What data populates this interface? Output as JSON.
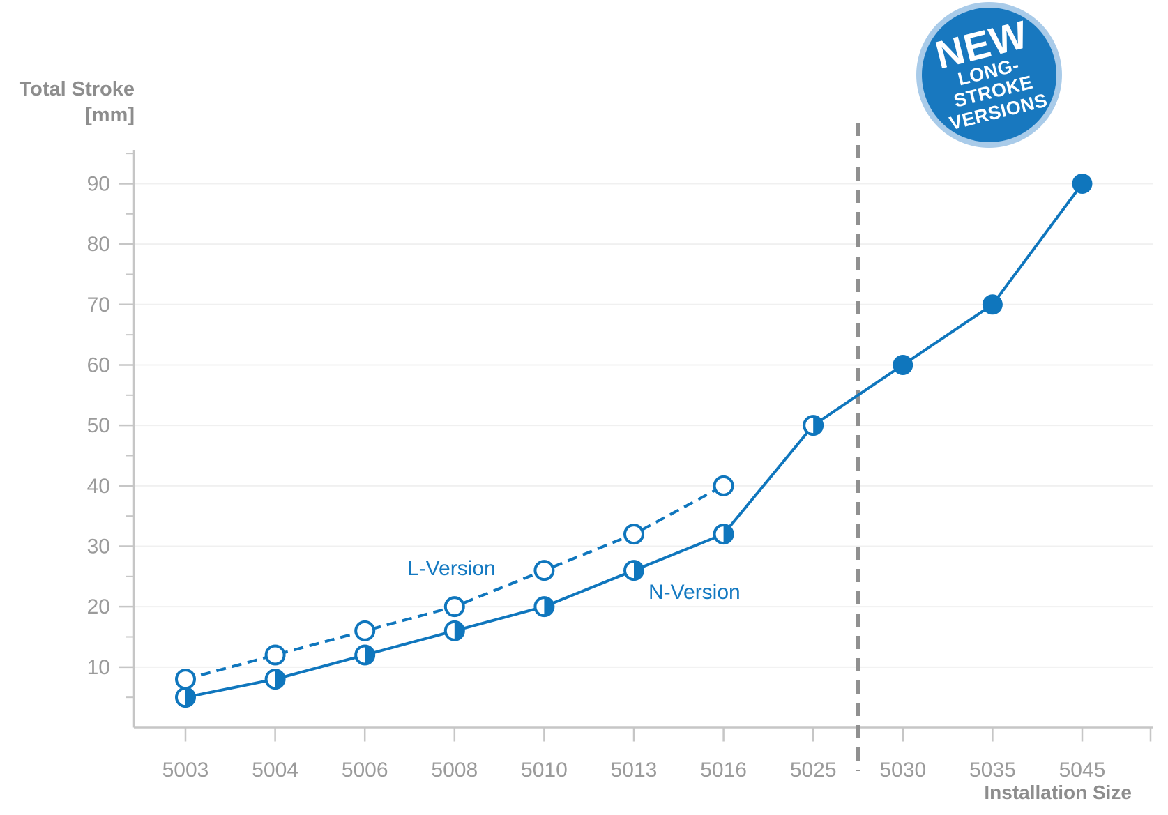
{
  "ylabel": {
    "line1": "Total Stroke",
    "line2": "[mm]"
  },
  "xlabel": "Installation Size",
  "badge": {
    "line1": "NEW",
    "line2": "LONG-STROKE",
    "line3": "VERSIONS"
  },
  "colors": {
    "line_blue": "#0f76bd",
    "series_label_blue": "#1479c1",
    "badge_fill": "#1878bf",
    "badge_ring": "#a9cbe9",
    "badge_text": "#ffffff",
    "axis_gray": "#c6c6c6",
    "grid_gray": "#f0f0f0",
    "tick_label_gray": "#9b9b9b",
    "title_gray": "#8d8d8d",
    "divider_gray": "#909090",
    "marker_open_fill": "#ffffff"
  },
  "chart_data": {
    "type": "line",
    "title": "",
    "xlabel": "Installation Size",
    "ylabel": "Total Stroke [mm]",
    "categories": [
      "5003",
      "5004",
      "5006",
      "5008",
      "5010",
      "5013",
      "5016",
      "5025",
      "5030",
      "5035",
      "5045"
    ],
    "series": [
      {
        "name": "L-Version",
        "line_style": "dashed",
        "marker": "open-circle",
        "values": [
          8,
          12,
          16,
          20,
          26,
          32,
          40,
          null,
          null,
          null,
          null
        ]
      },
      {
        "name": "N-Version",
        "line_style": "solid",
        "marker": "half-filled-circle",
        "marker_filled_from_category": "5030",
        "values": [
          5,
          8,
          12,
          16,
          20,
          26,
          32,
          50,
          60,
          70,
          90
        ]
      }
    ],
    "yticks": [
      10,
      20,
      30,
      40,
      50,
      60,
      70,
      80,
      90
    ],
    "minor_yticks": [
      5,
      15,
      25,
      35,
      45,
      55,
      65,
      75,
      85,
      95
    ],
    "ylim": [
      0,
      95.5
    ],
    "grid": "horizontal-light",
    "legend_position": "inline-annotations",
    "divider_between": [
      "5025",
      "5030"
    ],
    "divider_label": "NEW LONG-STROKE VERSIONS"
  }
}
